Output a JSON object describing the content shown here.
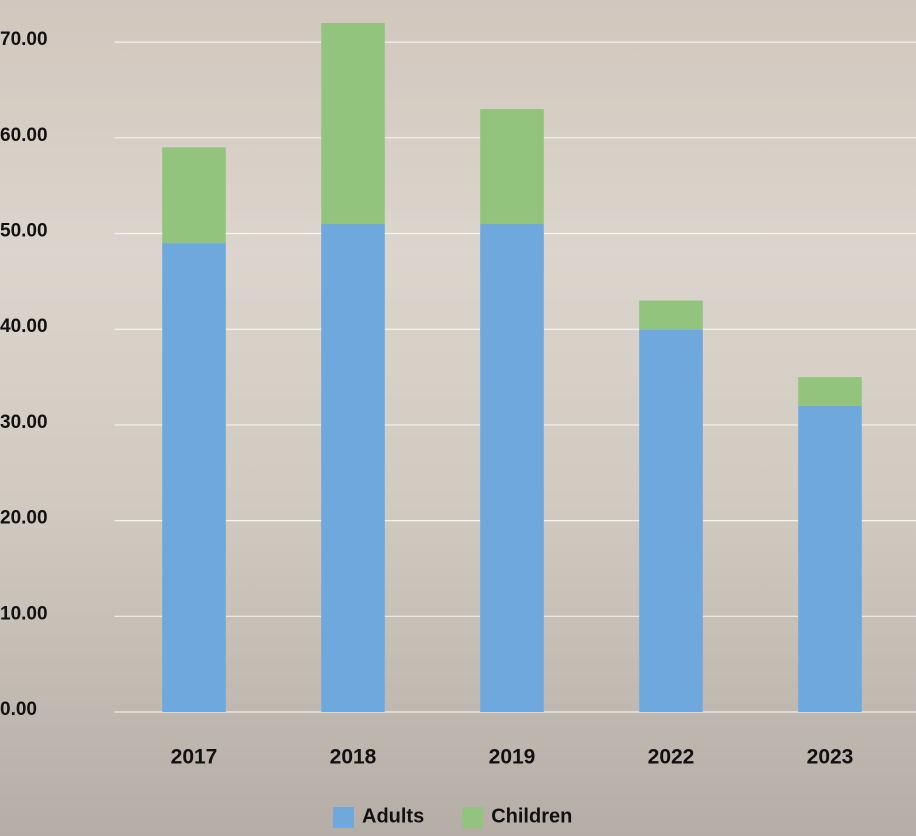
{
  "chart_data": {
    "type": "stacked_bar",
    "categories": [
      "2017",
      "2018",
      "2019",
      "2022",
      "2023"
    ],
    "series": [
      {
        "name": "Adults",
        "color": "#6fa8dc",
        "values": [
          49,
          51,
          51,
          40,
          32
        ]
      },
      {
        "name": "Children",
        "color": "#93c47d",
        "values": [
          10,
          21,
          12,
          3,
          3
        ]
      }
    ],
    "ylim": [
      0,
      72
    ],
    "yticks": [
      {
        "value": 0,
        "label": "0.00"
      },
      {
        "value": 10,
        "label": "10.00"
      },
      {
        "value": 20,
        "label": "20.00"
      },
      {
        "value": 30,
        "label": "30.00"
      },
      {
        "value": 40,
        "label": "40.00"
      },
      {
        "value": 50,
        "label": "50.00"
      },
      {
        "value": 60,
        "label": "60.00"
      },
      {
        "value": 70,
        "label": "70.00"
      }
    ],
    "grid": true,
    "legend": "bottom"
  }
}
